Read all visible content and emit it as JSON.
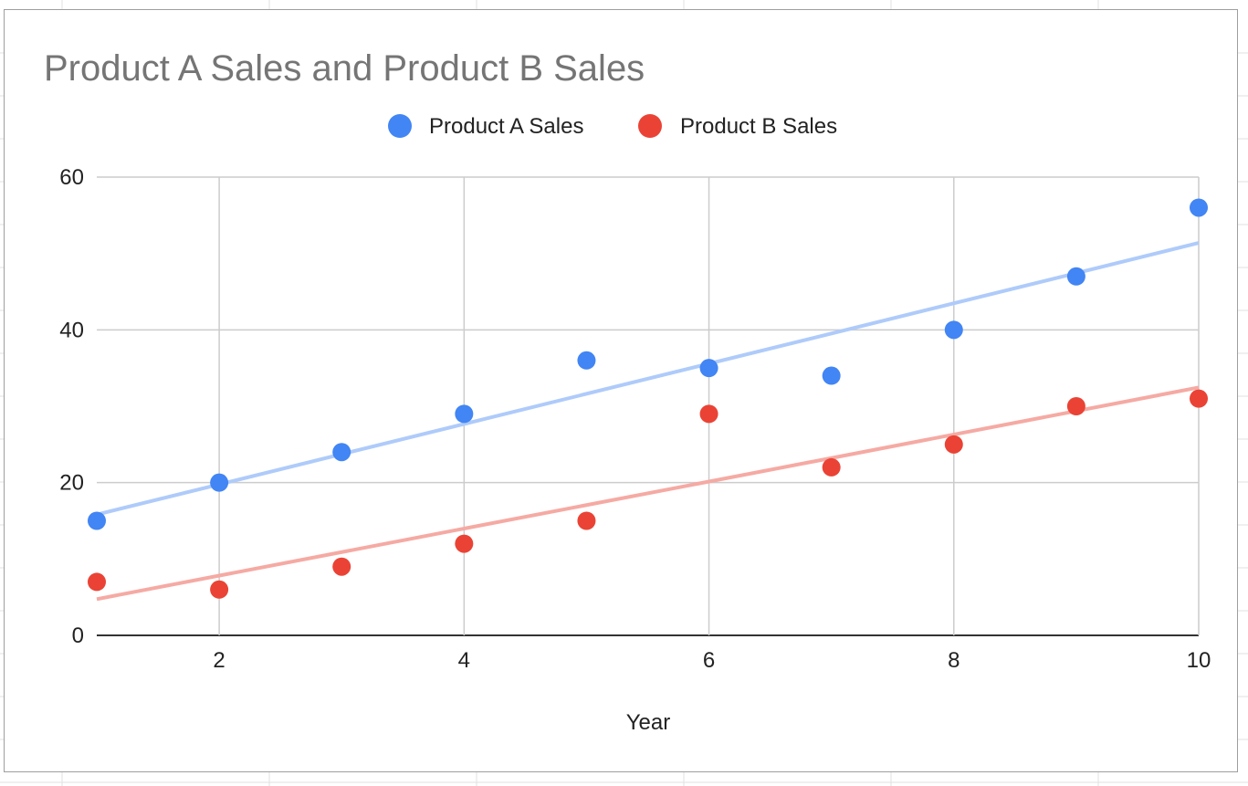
{
  "colors": {
    "series_a": "#4285f4",
    "series_b": "#ea4335",
    "trend_a": "#aecbfa",
    "trend_b": "#f5aaa3",
    "grid": "#cccccc",
    "axis": "#333333",
    "sheet_grid": "#e2e2e2"
  },
  "chart_data": {
    "type": "scatter",
    "title": "Product A Sales and Product B Sales",
    "xlabel": "Year",
    "ylabel": "",
    "xlim": [
      1,
      10
    ],
    "ylim": [
      0,
      60
    ],
    "x_ticks": [
      "2",
      "4",
      "6",
      "8",
      "10"
    ],
    "y_ticks": [
      "0",
      "20",
      "40",
      "60"
    ],
    "grid": true,
    "legend_position": "top",
    "x": [
      1,
      2,
      3,
      4,
      5,
      6,
      7,
      8,
      9,
      10
    ],
    "series": [
      {
        "name": "Product A Sales",
        "color": "#4285f4",
        "trendline": true,
        "values": [
          15,
          20,
          24,
          29,
          36,
          35,
          34,
          40,
          47,
          56
        ]
      },
      {
        "name": "Product B Sales",
        "color": "#ea4335",
        "trendline": true,
        "values": [
          7,
          6,
          9,
          12,
          15,
          29,
          22,
          25,
          30,
          31
        ]
      }
    ]
  }
}
